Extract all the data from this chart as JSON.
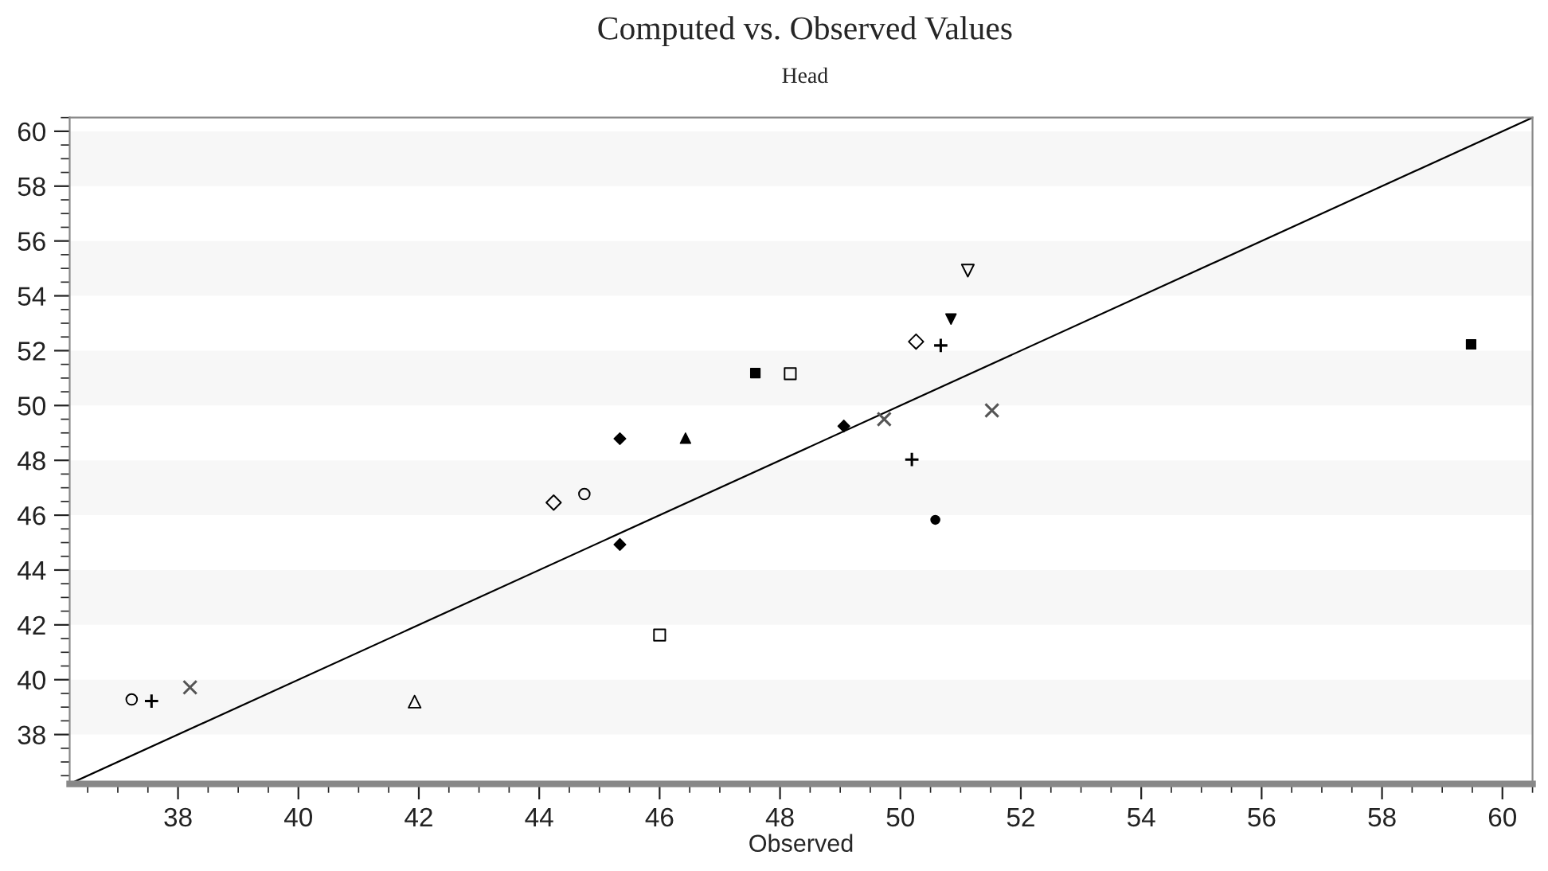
{
  "chart_data": {
    "type": "scatter",
    "title": "Computed vs. Observed Values",
    "subtitle": "Head",
    "xlabel": "Observed",
    "xlim": [
      36.2,
      60.5
    ],
    "ylim": [
      36.2,
      60.5
    ],
    "xticks": [
      38,
      40,
      42,
      44,
      46,
      48,
      50,
      52,
      54,
      56,
      58,
      60
    ],
    "yticks": [
      38,
      40,
      42,
      44,
      46,
      48,
      50,
      52,
      54,
      56,
      58,
      60
    ],
    "grid": false,
    "legend": false,
    "bands": [
      {
        "axis": "y",
        "from": 38,
        "to": 40,
        "color": "#f7f7f7"
      },
      {
        "axis": "y",
        "from": 42,
        "to": 44,
        "color": "#f7f7f7"
      },
      {
        "axis": "y",
        "from": 46,
        "to": 48,
        "color": "#f7f7f7"
      },
      {
        "axis": "y",
        "from": 50,
        "to": 52,
        "color": "#f7f7f7"
      },
      {
        "axis": "y",
        "from": 54,
        "to": 56,
        "color": "#f7f7f7"
      },
      {
        "axis": "y",
        "from": 58,
        "to": 60,
        "color": "#f7f7f7"
      }
    ],
    "series": [
      {
        "type": "line",
        "color": "#000000",
        "marker": "none",
        "line_style": "solid",
        "x": [
          36.2,
          60.5
        ],
        "values": [
          36.2,
          60.5
        ]
      },
      {
        "color": "#000000",
        "marker": "circle-open",
        "x": [
          37.23,
          44.75
        ],
        "values": [
          39.28,
          46.77
        ]
      },
      {
        "color": "#000000",
        "marker": "plus",
        "x": [
          37.56,
          50.19,
          50.67
        ],
        "values": [
          39.22,
          48.03,
          52.19
        ]
      },
      {
        "color": "#555555",
        "marker": "cross",
        "x": [
          38.2,
          49.73,
          51.52
        ],
        "values": [
          39.72,
          49.5,
          49.82
        ]
      },
      {
        "color": "#000000",
        "marker": "triangle-open",
        "x": [
          41.93
        ],
        "values": [
          39.2
        ]
      },
      {
        "color": "#000000",
        "marker": "diamond-open",
        "x": [
          44.24,
          50.26
        ],
        "values": [
          46.46,
          52.33
        ]
      },
      {
        "color": "#000000",
        "marker": "diamond",
        "x": [
          45.34,
          45.34,
          49.06
        ],
        "values": [
          48.79,
          44.93,
          49.25
        ]
      },
      {
        "color": "#000000",
        "marker": "triangle",
        "x": [
          46.43
        ],
        "values": [
          48.81
        ]
      },
      {
        "color": "#000000",
        "marker": "square-open",
        "x": [
          46.0,
          48.17
        ],
        "values": [
          41.63,
          51.16
        ]
      },
      {
        "color": "#000000",
        "marker": "square",
        "x": [
          47.59,
          59.48
        ],
        "values": [
          51.18,
          52.23
        ]
      },
      {
        "color": "#000000",
        "marker": "circle",
        "x": [
          50.58
        ],
        "values": [
          45.83
        ]
      },
      {
        "color": "#000000",
        "marker": "triangle-down",
        "x": [
          50.84
        ],
        "values": [
          53.15
        ]
      },
      {
        "color": "#000000",
        "marker": "triangle-down-open",
        "x": [
          51.12
        ],
        "values": [
          54.92
        ]
      }
    ]
  }
}
